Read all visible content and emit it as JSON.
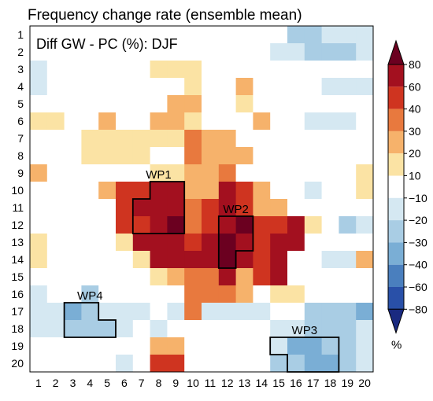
{
  "chart_data": {
    "type": "heatmap",
    "title": "Frequency change rate (ensemble mean)",
    "annotation": "Diff GW - PC (%): DJF",
    "x_categories": [
      "1",
      "2",
      "3",
      "4",
      "5",
      "6",
      "7",
      "8",
      "9",
      "10",
      "11",
      "12",
      "13",
      "14",
      "15",
      "16",
      "17",
      "18",
      "19",
      "20"
    ],
    "y_categories": [
      "1",
      "2",
      "3",
      "4",
      "5",
      "6",
      "7",
      "8",
      "9",
      "10",
      "11",
      "12",
      "13",
      "14",
      "15",
      "16",
      "17",
      "18",
      "19",
      "20"
    ],
    "colorbar": {
      "levels": [
        -80,
        -60,
        -40,
        -30,
        -20,
        -10,
        10,
        20,
        30,
        40,
        60,
        80
      ],
      "tick_labels": [
        "80",
        "60",
        "40",
        "30",
        "20",
        "10",
        "−10",
        "−20",
        "−30",
        "−40",
        "−60",
        "−80"
      ],
      "unit": "%",
      "colors": [
        "#1a2a80",
        "#2950a8",
        "#4a7fbe",
        "#7aaed5",
        "#a9cde4",
        "#d5e8f2",
        "#ffffff",
        "#fbe3a4",
        "#f6b26b",
        "#e8793e",
        "#cf3420",
        "#a3101f",
        "#6b0020"
      ]
    },
    "values": [
      [
        0,
        0,
        0,
        0,
        0,
        0,
        0,
        0,
        0,
        0,
        0,
        0,
        0,
        0,
        0,
        -25,
        -25,
        -15,
        -15,
        -15
      ],
      [
        0,
        0,
        0,
        0,
        0,
        0,
        0,
        0,
        0,
        0,
        0,
        0,
        0,
        0,
        -15,
        -15,
        -25,
        -25,
        -25,
        -15
      ],
      [
        -15,
        -5,
        -5,
        0,
        0,
        0,
        0,
        15,
        15,
        15,
        0,
        0,
        0,
        0,
        0,
        0,
        0,
        -5,
        -5,
        -5
      ],
      [
        -15,
        0,
        0,
        0,
        0,
        0,
        0,
        0,
        0,
        15,
        0,
        0,
        25,
        0,
        0,
        0,
        0,
        -15,
        -15,
        -15
      ],
      [
        0,
        0,
        0,
        0,
        0,
        0,
        0,
        0,
        25,
        25,
        0,
        0,
        15,
        0,
        0,
        0,
        0,
        0,
        0,
        0
      ],
      [
        15,
        15,
        0,
        0,
        25,
        0,
        0,
        25,
        25,
        15,
        0,
        0,
        0,
        25,
        0,
        0,
        -15,
        -15,
        -15,
        0
      ],
      [
        0,
        0,
        0,
        15,
        15,
        15,
        15,
        15,
        15,
        35,
        25,
        25,
        0,
        0,
        0,
        0,
        0,
        0,
        0,
        0
      ],
      [
        0,
        0,
        0,
        15,
        15,
        15,
        15,
        0,
        0,
        35,
        25,
        25,
        25,
        0,
        0,
        0,
        0,
        0,
        0,
        0
      ],
      [
        25,
        0,
        0,
        0,
        0,
        0,
        0,
        15,
        15,
        25,
        25,
        35,
        0,
        0,
        0,
        0,
        0,
        0,
        0,
        15
      ],
      [
        0,
        0,
        0,
        0,
        25,
        50,
        50,
        70,
        70,
        25,
        25,
        70,
        50,
        25,
        0,
        0,
        -15,
        0,
        0,
        15
      ],
      [
        0,
        0,
        0,
        0,
        0,
        50,
        70,
        70,
        70,
        35,
        50,
        70,
        50,
        25,
        25,
        0,
        0,
        0,
        0,
        0
      ],
      [
        0,
        0,
        -5,
        -5,
        0,
        50,
        50,
        70,
        90,
        35,
        50,
        70,
        90,
        50,
        50,
        70,
        15,
        0,
        -25,
        -15
      ],
      [
        15,
        0,
        0,
        0,
        0,
        15,
        70,
        70,
        70,
        50,
        70,
        90,
        70,
        50,
        70,
        70,
        0,
        -5,
        -5,
        -5
      ],
      [
        15,
        0,
        0,
        0,
        0,
        0,
        15,
        70,
        70,
        70,
        70,
        90,
        70,
        50,
        70,
        0,
        0,
        -15,
        -15,
        25
      ],
      [
        0,
        0,
        0,
        0,
        -5,
        0,
        0,
        15,
        25,
        35,
        35,
        70,
        25,
        50,
        70,
        0,
        0,
        0,
        0,
        0
      ],
      [
        -15,
        0,
        -5,
        -25,
        0,
        0,
        0,
        0,
        0,
        35,
        35,
        35,
        25,
        0,
        15,
        15,
        0,
        0,
        0,
        0
      ],
      [
        -15,
        -15,
        -35,
        -25,
        -15,
        -15,
        -15,
        0,
        -15,
        35,
        -15,
        -15,
        -15,
        -15,
        0,
        0,
        -25,
        -25,
        -25,
        -35
      ],
      [
        -15,
        -15,
        -25,
        -25,
        -25,
        -15,
        0,
        -15,
        0,
        0,
        0,
        0,
        0,
        0,
        -15,
        -15,
        -25,
        -25,
        -25,
        -15
      ],
      [
        0,
        -5,
        0,
        0,
        0,
        0,
        0,
        25,
        25,
        0,
        0,
        0,
        0,
        0,
        -15,
        -35,
        -35,
        -25,
        -25,
        -15
      ],
      [
        0,
        0,
        0,
        0,
        0,
        -15,
        0,
        50,
        50,
        0,
        0,
        0,
        0,
        0,
        -25,
        -25,
        -35,
        -35,
        -25,
        -15
      ]
    ],
    "regions": [
      {
        "label": "WP1",
        "cells": [
          [
            7,
            11
          ],
          [
            7,
            12
          ],
          [
            8,
            10
          ],
          [
            8,
            11
          ],
          [
            8,
            12
          ],
          [
            9,
            10
          ],
          [
            9,
            11
          ],
          [
            9,
            12
          ]
        ]
      },
      {
        "label": "WP2",
        "cells": [
          [
            12,
            12
          ],
          [
            13,
            12
          ],
          [
            12,
            13
          ],
          [
            13,
            13
          ],
          [
            12,
            14
          ]
        ]
      },
      {
        "label": "WP3",
        "cells": [
          [
            15,
            19
          ],
          [
            16,
            19
          ],
          [
            17,
            19
          ],
          [
            18,
            19
          ],
          [
            16,
            20
          ],
          [
            17,
            20
          ],
          [
            18,
            20
          ]
        ]
      },
      {
        "label": "WP4",
        "cells": [
          [
            3,
            17
          ],
          [
            4,
            17
          ],
          [
            3,
            18
          ],
          [
            4,
            18
          ],
          [
            5,
            18
          ]
        ]
      }
    ]
  }
}
